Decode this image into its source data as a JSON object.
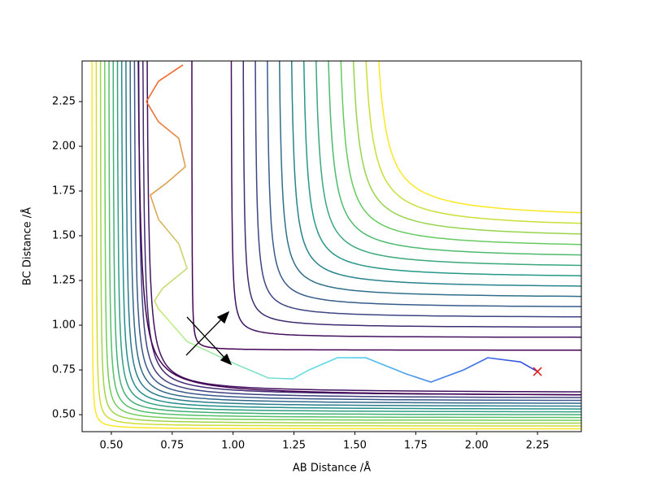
{
  "chart_data": {
    "type": "trajectory",
    "xlabel": "AB Distance /Å",
    "ylabel": "BC Distance /Å",
    "xlim": [
      0.38,
      2.43
    ],
    "ylim": [
      0.405,
      2.477
    ],
    "xticks": [
      {
        "value": 0.5,
        "label": "0.50"
      },
      {
        "value": 0.75,
        "label": "0.75"
      },
      {
        "value": 1.0,
        "label": "1.00"
      },
      {
        "value": 1.25,
        "label": "1.25"
      },
      {
        "value": 1.5,
        "label": "1.50"
      },
      {
        "value": 1.75,
        "label": "1.75"
      },
      {
        "value": 2.0,
        "label": "2.00"
      },
      {
        "value": 2.25,
        "label": "2.25"
      }
    ],
    "yticks": [
      {
        "value": 0.5,
        "label": "0.50"
      },
      {
        "value": 0.75,
        "label": "0.75"
      },
      {
        "value": 1.0,
        "label": "1.00"
      },
      {
        "value": 1.25,
        "label": "1.25"
      },
      {
        "value": 1.5,
        "label": "1.50"
      },
      {
        "value": 1.75,
        "label": "1.75"
      },
      {
        "value": 2.0,
        "label": "2.00"
      },
      {
        "value": 2.25,
        "label": "2.25"
      }
    ],
    "trajectory": {
      "x": [
        2.25,
        2.18,
        2.046,
        1.946,
        1.812,
        1.712,
        1.545,
        1.428,
        1.312,
        1.245,
        1.145,
        1.011,
        0.811,
        0.694,
        0.677,
        0.71,
        0.811,
        0.777,
        0.694,
        0.66,
        0.727,
        0.804,
        0.777,
        0.694,
        0.644,
        0.694,
        0.794
      ],
      "y": [
        0.741,
        0.795,
        0.818,
        0.75,
        0.682,
        0.727,
        0.818,
        0.818,
        0.75,
        0.7,
        0.705,
        0.782,
        0.909,
        1.091,
        1.136,
        1.205,
        1.318,
        1.455,
        1.591,
        1.727,
        1.795,
        1.886,
        2.045,
        2.136,
        2.25,
        2.364,
        2.455
      ],
      "colors": [
        "#3040e0",
        "#5ad8f0",
        "#c0f080",
        "#f06a30"
      ]
    },
    "end_marker_color": "#e02020"
  }
}
